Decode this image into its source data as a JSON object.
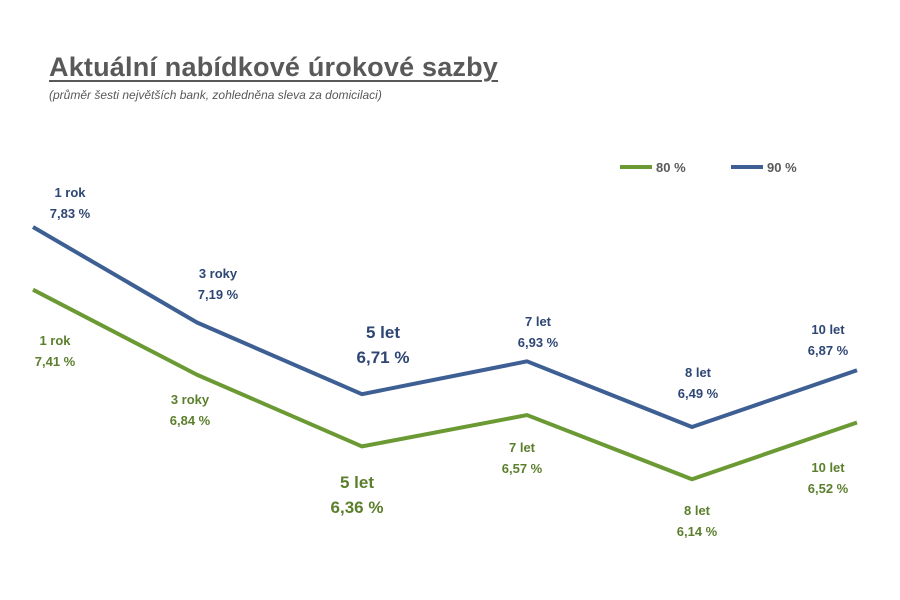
{
  "title": "Aktuální nabídkové úrokové sazby",
  "subtitle": "(průměr šesti největších bank, zohledněna sleva za domicilaci)",
  "chart_data": {
    "type": "line",
    "categories": [
      "1 rok",
      "3 roky",
      "5 let",
      "7 let",
      "8 let",
      "10 let"
    ],
    "series": [
      {
        "name": "80 %",
        "color": "#6b9a34",
        "label_color": "#5b7f2c",
        "values": [
          7.41,
          6.84,
          6.36,
          6.57,
          6.14,
          6.52
        ],
        "labels": [
          "7,41 %",
          "6,84 %",
          "6,36 %",
          "6,57 %",
          "6,14 %",
          "6,52 %"
        ]
      },
      {
        "name": "90 %",
        "color": "#3d5f93",
        "label_color": "#2e4674",
        "values": [
          7.83,
          7.19,
          6.71,
          6.93,
          6.49,
          6.87
        ],
        "labels": [
          "7,83 %",
          "7,19 %",
          "6,71 %",
          "6,93 %",
          "6,49 %",
          "6,87 %"
        ]
      }
    ],
    "legend": "top-right",
    "grid": false,
    "xlabel": "",
    "ylabel": ""
  }
}
